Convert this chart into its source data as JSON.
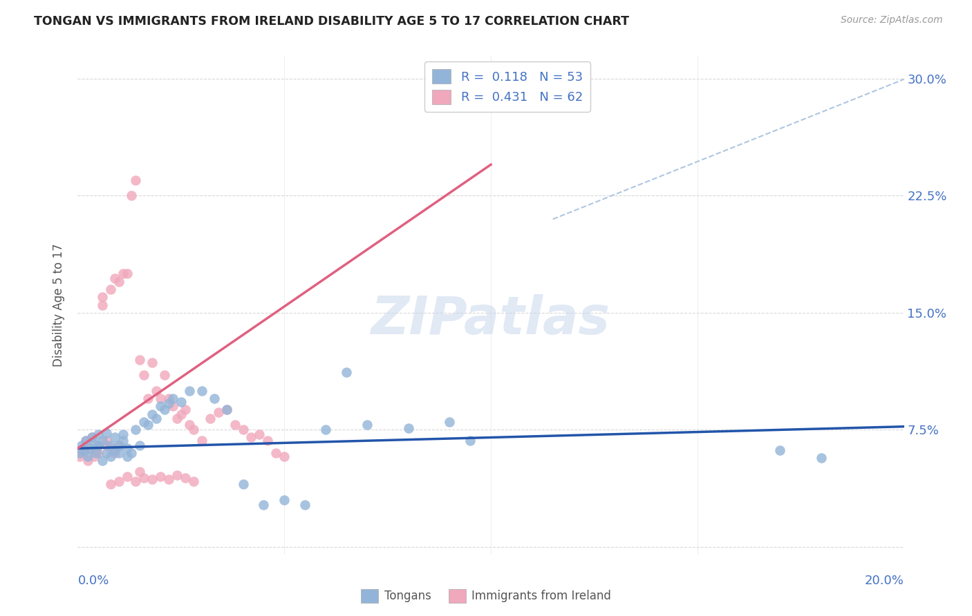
{
  "title": "TONGAN VS IMMIGRANTS FROM IRELAND DISABILITY AGE 5 TO 17 CORRELATION CHART",
  "source": "Source: ZipAtlas.com",
  "ylabel": "Disability Age 5 to 17",
  "xlim": [
    0.0,
    0.2
  ],
  "ylim": [
    -0.005,
    0.315
  ],
  "color_blue": "#92b4d8",
  "color_pink": "#f0a8bc",
  "line_color_blue": "#2255aa",
  "line_color_pink": "#e06080",
  "line_color_dashed": "#aec6e0",
  "legend_label1": "Tongans",
  "legend_label2": "Immigrants from Ireland",
  "watermark_text": "ZIPatlas",
  "tongans_x": [
    0.0005,
    0.001,
    0.0015,
    0.002,
    0.0025,
    0.003,
    0.0035,
    0.004,
    0.0045,
    0.005,
    0.005,
    0.006,
    0.006,
    0.007,
    0.007,
    0.008,
    0.008,
    0.009,
    0.009,
    0.01,
    0.01,
    0.011,
    0.011,
    0.012,
    0.012,
    0.013,
    0.014,
    0.015,
    0.016,
    0.017,
    0.018,
    0.019,
    0.02,
    0.021,
    0.022,
    0.023,
    0.025,
    0.027,
    0.03,
    0.033,
    0.036,
    0.04,
    0.045,
    0.05,
    0.055,
    0.06,
    0.065,
    0.07,
    0.08,
    0.09,
    0.095,
    0.17,
    0.18
  ],
  "tongans_y": [
    0.06,
    0.065,
    0.062,
    0.068,
    0.058,
    0.063,
    0.07,
    0.066,
    0.06,
    0.065,
    0.072,
    0.055,
    0.068,
    0.06,
    0.073,
    0.065,
    0.058,
    0.07,
    0.062,
    0.06,
    0.065,
    0.068,
    0.072,
    0.063,
    0.058,
    0.06,
    0.075,
    0.065,
    0.08,
    0.078,
    0.085,
    0.082,
    0.09,
    0.088,
    0.092,
    0.095,
    0.093,
    0.1,
    0.1,
    0.095,
    0.088,
    0.04,
    0.027,
    0.03,
    0.027,
    0.075,
    0.112,
    0.078,
    0.076,
    0.08,
    0.068,
    0.062,
    0.057
  ],
  "ireland_x": [
    0.0005,
    0.001,
    0.0015,
    0.002,
    0.0025,
    0.003,
    0.0035,
    0.004,
    0.0045,
    0.005,
    0.005,
    0.006,
    0.006,
    0.007,
    0.007,
    0.008,
    0.008,
    0.009,
    0.009,
    0.01,
    0.01,
    0.011,
    0.012,
    0.013,
    0.014,
    0.015,
    0.016,
    0.017,
    0.018,
    0.019,
    0.02,
    0.021,
    0.022,
    0.023,
    0.024,
    0.025,
    0.026,
    0.027,
    0.028,
    0.03,
    0.032,
    0.034,
    0.036,
    0.038,
    0.04,
    0.042,
    0.044,
    0.046,
    0.048,
    0.05,
    0.015,
    0.012,
    0.01,
    0.008,
    0.018,
    0.02,
    0.022,
    0.014,
    0.016,
    0.024,
    0.026,
    0.028
  ],
  "ireland_y": [
    0.058,
    0.062,
    0.06,
    0.068,
    0.055,
    0.063,
    0.07,
    0.058,
    0.062,
    0.065,
    0.06,
    0.16,
    0.155,
    0.068,
    0.065,
    0.063,
    0.165,
    0.172,
    0.06,
    0.17,
    0.065,
    0.175,
    0.175,
    0.225,
    0.235,
    0.12,
    0.11,
    0.095,
    0.118,
    0.1,
    0.095,
    0.11,
    0.095,
    0.09,
    0.082,
    0.085,
    0.088,
    0.078,
    0.075,
    0.068,
    0.082,
    0.086,
    0.088,
    0.078,
    0.075,
    0.07,
    0.072,
    0.068,
    0.06,
    0.058,
    0.048,
    0.045,
    0.042,
    0.04,
    0.043,
    0.045,
    0.043,
    0.042,
    0.044,
    0.046,
    0.044,
    0.042
  ]
}
